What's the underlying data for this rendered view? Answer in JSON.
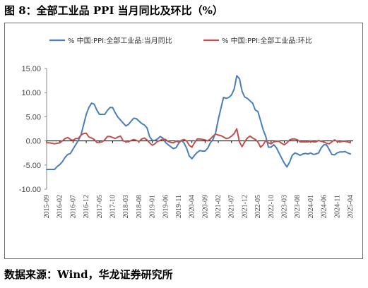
{
  "title": "图 8：全部工业品 PPI 当月同比及环比（%）",
  "source": "数据来源：Wind，华龙证券研究所",
  "chart_data": {
    "type": "line",
    "grid": false,
    "legend_position": "top",
    "ylim": [
      -10,
      15
    ],
    "yticks": [
      "15.00",
      "10.00",
      "5.00",
      "0.00",
      "-5.00",
      "-10.00"
    ],
    "xticks": [
      "2015-09",
      "2016-02",
      "2016-07",
      "2016-12",
      "2017-05",
      "2017-10",
      "2018-03",
      "2018-08",
      "2019-01",
      "2019-06",
      "2019-11",
      "2020-04",
      "2020-09",
      "2021-02",
      "2021-07",
      "2021-12",
      "2022-05",
      "2022-10",
      "2023-03",
      "2023-08",
      "2024-01",
      "2024-06",
      "2024-11",
      "2025-04"
    ],
    "x_start": "2015-09",
    "series": [
      {
        "name": "% 中国:PPI:全部工业品:当月同比",
        "color": "#4a7ebb",
        "values": [
          -5.9,
          -5.9,
          -5.9,
          -5.9,
          -5.3,
          -4.9,
          -4.3,
          -3.4,
          -2.8,
          -2.6,
          -1.7,
          -0.8,
          0.1,
          1.2,
          3.3,
          5.5,
          6.9,
          7.8,
          7.6,
          6.4,
          5.5,
          5.5,
          5.5,
          6.3,
          6.9,
          6.9,
          5.8,
          4.9,
          4.3,
          3.7,
          3.1,
          3.4,
          4.1,
          4.7,
          4.6,
          4.1,
          3.6,
          3.3,
          2.7,
          0.9,
          0.1,
          0.1,
          0.4,
          0.9,
          0.6,
          -0.3,
          -0.8,
          -1.2,
          -1.6,
          -1.4,
          -0.5,
          0.1,
          -0.4,
          -1.5,
          -3.1,
          -3.7,
          -3.0,
          -2.4,
          -2.0,
          -2.1,
          -2.1,
          -1.5,
          -0.4,
          0.3,
          1.7,
          4.4,
          6.8,
          9.0,
          8.8,
          9.0,
          9.5,
          10.7,
          13.5,
          12.9,
          10.3,
          9.1,
          8.8,
          8.3,
          7.8,
          6.4,
          6.1,
          4.2,
          2.3,
          0.9,
          -1.3,
          -1.3,
          -0.8,
          -1.4,
          -2.5,
          -3.6,
          -4.6,
          -5.4,
          -4.4,
          -3.0,
          -2.5,
          -2.7,
          -3.0,
          -2.7,
          -2.6,
          -2.7,
          -2.5,
          -2.8,
          -2.7,
          -2.5,
          -1.4,
          -0.8,
          -0.8,
          -1.8,
          -2.8,
          -2.9,
          -2.5,
          -2.3,
          -2.3,
          -2.2,
          -2.5,
          -2.7
        ]
      },
      {
        "name": "% 中国:PPI:全部工业品:环比",
        "color": "#c0504d",
        "values": [
          -0.4,
          -0.4,
          -0.5,
          -0.6,
          -0.5,
          -0.4,
          0.0,
          0.5,
          0.7,
          0.3,
          0.1,
          0.5,
          0.5,
          1.2,
          1.5,
          1.6,
          0.8,
          0.6,
          0.3,
          -0.3,
          -0.3,
          -0.2,
          0.2,
          0.9,
          0.9,
          0.7,
          0.5,
          0.8,
          1.0,
          0.0,
          -0.1,
          -0.2,
          0.1,
          0.3,
          0.1,
          -0.1,
          0.4,
          0.6,
          0.2,
          -0.4,
          -0.9,
          -0.6,
          -0.1,
          0.1,
          0.4,
          0.3,
          -0.1,
          -0.3,
          -0.4,
          -0.1,
          -0.2,
          0.1,
          0.3,
          0.0,
          -0.9,
          -1.3,
          -0.4,
          0.4,
          0.4,
          0.3,
          0.2,
          0.0,
          0.4,
          1.0,
          1.4,
          1.2,
          1.1,
          0.8,
          0.5,
          0.6,
          1.0,
          1.5,
          2.5,
          -0.2,
          -1.2,
          -0.2,
          0.6,
          1.0,
          0.6,
          0.3,
          -0.2,
          -1.3,
          -0.8,
          0.1,
          -0.4,
          -0.6,
          -0.2,
          -0.1,
          -0.1,
          -0.5,
          -0.8,
          -0.4,
          0.2,
          0.4,
          0.4,
          0.2,
          -0.2,
          -0.2,
          -0.2,
          -0.2,
          -0.1,
          -0.2,
          -0.2,
          0.1,
          -0.1,
          -0.2,
          -0.5,
          -0.6,
          -0.2,
          0.2,
          -0.1,
          -0.2,
          -0.1,
          -0.1,
          -0.2,
          -0.4
        ]
      }
    ]
  }
}
